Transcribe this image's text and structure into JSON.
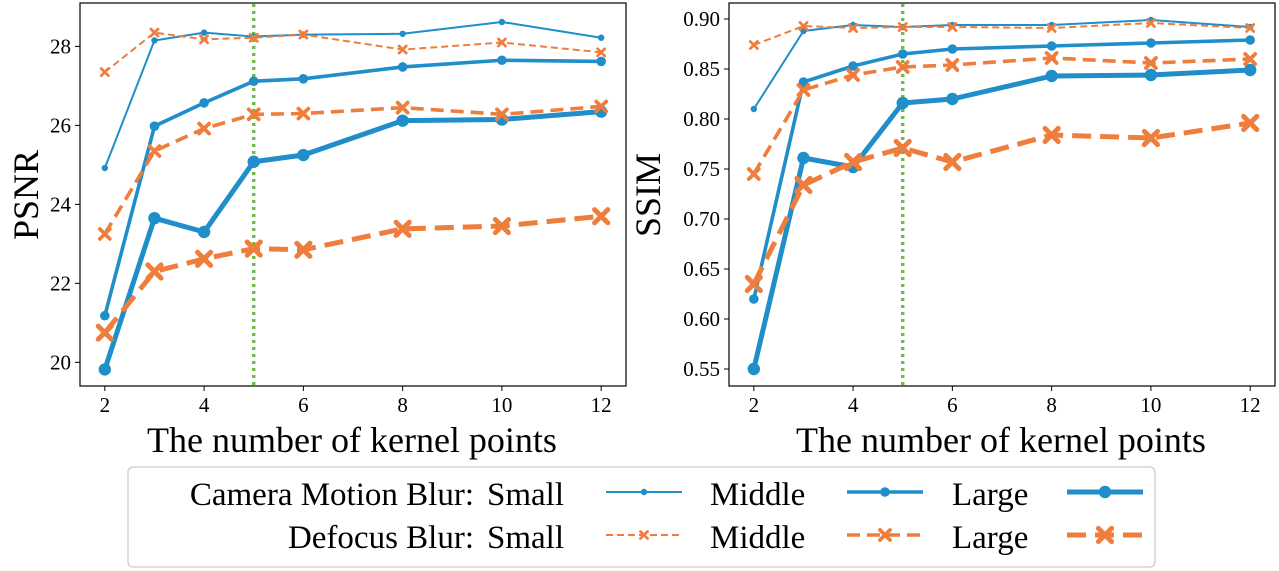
{
  "chart_data": [
    {
      "type": "line",
      "ylabel": "PSNR",
      "xlabel": "The number of kernel points",
      "x": [
        2,
        3,
        4,
        5,
        6,
        8,
        10,
        12
      ],
      "xlim": [
        1.5,
        12.5
      ],
      "ylim": [
        19.4,
        29.1
      ],
      "xticks": [
        2,
        4,
        6,
        8,
        10,
        12
      ],
      "yticks": [
        20,
        22,
        24,
        26,
        28
      ],
      "vline": 5,
      "series": [
        {
          "group": "Camera Motion Blur",
          "name": "Small",
          "values": [
            24.92,
            28.15,
            28.35,
            28.25,
            28.3,
            28.32,
            28.62,
            28.22
          ]
        },
        {
          "group": "Camera Motion Blur",
          "name": "Middle",
          "values": [
            21.18,
            25.98,
            26.57,
            27.12,
            27.18,
            27.48,
            27.65,
            27.62
          ]
        },
        {
          "group": "Camera Motion Blur",
          "name": "Large",
          "values": [
            19.82,
            23.65,
            23.3,
            25.08,
            25.25,
            26.12,
            26.15,
            26.35
          ]
        },
        {
          "group": "Defocus Blur",
          "name": "Small",
          "values": [
            27.35,
            28.35,
            28.18,
            28.22,
            28.3,
            27.92,
            28.1,
            27.85
          ]
        },
        {
          "group": "Defocus Blur",
          "name": "Middle",
          "values": [
            23.25,
            25.35,
            25.92,
            26.28,
            26.3,
            26.45,
            26.28,
            26.48
          ]
        },
        {
          "group": "Defocus Blur",
          "name": "Large",
          "values": [
            20.75,
            22.3,
            22.62,
            22.88,
            22.85,
            23.38,
            23.45,
            23.7
          ]
        }
      ]
    },
    {
      "type": "line",
      "ylabel": "SSIM",
      "xlabel": "The number of kernel points",
      "x": [
        2,
        3,
        4,
        5,
        6,
        8,
        10,
        12
      ],
      "xlim": [
        1.5,
        12.5
      ],
      "ylim": [
        0.533,
        0.916
      ],
      "xticks": [
        2,
        4,
        6,
        8,
        10,
        12
      ],
      "yticks": [
        0.55,
        0.6,
        0.65,
        0.7,
        0.75,
        0.8,
        0.85,
        0.9
      ],
      "ytick_labels": [
        "0.55",
        "0.60",
        "0.65",
        "0.70",
        "0.75",
        "0.80",
        "0.85",
        "0.90"
      ],
      "vline": 5,
      "series": [
        {
          "group": "Camera Motion Blur",
          "name": "Small",
          "values": [
            0.81,
            0.888,
            0.894,
            0.892,
            0.894,
            0.894,
            0.899,
            0.892
          ]
        },
        {
          "group": "Camera Motion Blur",
          "name": "Middle",
          "values": [
            0.62,
            0.837,
            0.853,
            0.865,
            0.87,
            0.873,
            0.876,
            0.879
          ]
        },
        {
          "group": "Camera Motion Blur",
          "name": "Large",
          "values": [
            0.55,
            0.761,
            0.752,
            0.816,
            0.82,
            0.843,
            0.844,
            0.849
          ]
        },
        {
          "group": "Defocus Blur",
          "name": "Small",
          "values": [
            0.874,
            0.893,
            0.891,
            0.892,
            0.892,
            0.891,
            0.896,
            0.891
          ]
        },
        {
          "group": "Defocus Blur",
          "name": "Middle",
          "values": [
            0.745,
            0.829,
            0.844,
            0.852,
            0.854,
            0.861,
            0.856,
            0.86
          ]
        },
        {
          "group": "Defocus Blur",
          "name": "Large",
          "values": [
            0.635,
            0.734,
            0.757,
            0.771,
            0.757,
            0.784,
            0.781,
            0.796
          ]
        }
      ]
    }
  ],
  "legend": {
    "rows": [
      {
        "label": "Camera Motion Blur:",
        "entries": [
          "Small",
          "Middle",
          "Large"
        ]
      },
      {
        "label": "Defocus Blur:",
        "entries": [
          "Small",
          "Middle",
          "Large"
        ]
      }
    ]
  },
  "colors": {
    "camera": "#1f8ec9",
    "defocus": "#ef7d3c",
    "vline": "#6dba46"
  }
}
